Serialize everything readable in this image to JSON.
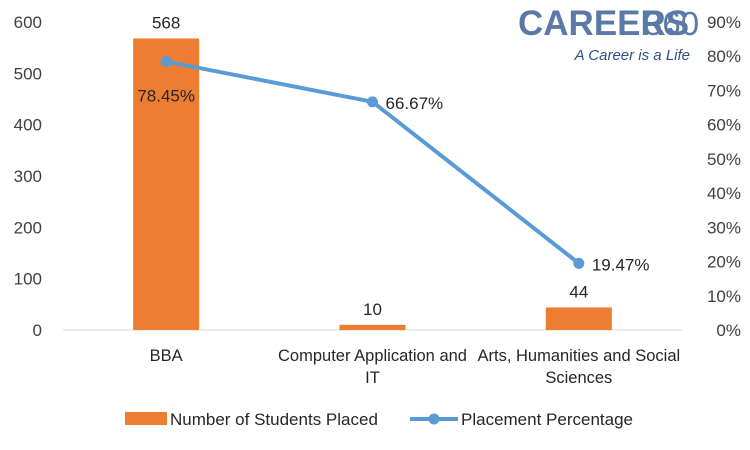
{
  "logo": {
    "brand": "CAREERS",
    "number": "360",
    "tagline": "A Career is a Life"
  },
  "chart_data": {
    "type": "bar",
    "categories": [
      "BBA",
      "Computer Application and IT",
      "Arts, Humanities and Social Sciences"
    ],
    "category_lines": [
      [
        "BBA"
      ],
      [
        "Computer Application and",
        "IT"
      ],
      [
        "Arts, Humanities and Social",
        "Sciences"
      ]
    ],
    "series": [
      {
        "name": "Number of Students Placed",
        "type": "bar",
        "axis": "left",
        "color": "#ed7d31",
        "values": [
          568,
          10,
          44
        ],
        "labels": [
          "568",
          "10",
          "44"
        ]
      },
      {
        "name": "Placement Percentage",
        "type": "line",
        "axis": "right",
        "color": "#5b9bd5",
        "values": [
          78.45,
          66.67,
          19.47
        ],
        "labels": [
          "78.45%",
          "66.67%",
          "19.47%"
        ]
      }
    ],
    "ylim": [
      0,
      600
    ],
    "y_ticks": [
      "0",
      "100",
      "200",
      "300",
      "400",
      "500",
      "600"
    ],
    "y2lim": [
      0,
      90
    ],
    "y2_ticks": [
      "0%",
      "10%",
      "20%",
      "30%",
      "40%",
      "50%",
      "60%",
      "70%",
      "80%",
      "90%"
    ],
    "grid": false,
    "legend_position": "bottom"
  }
}
